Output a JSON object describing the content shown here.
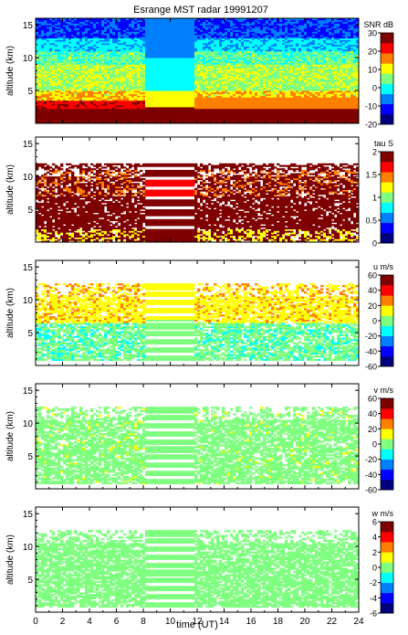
{
  "title": "Esrange MST radar 19991207",
  "x_axis": {
    "label": "time (UT)",
    "ticks": [
      "0",
      "2",
      "4",
      "6",
      "8",
      "10",
      "12",
      "14",
      "16",
      "18",
      "20",
      "22",
      "24"
    ]
  },
  "colormap": [
    "#00007f",
    "#0000ff",
    "#007fff",
    "#00ffff",
    "#7fff7f",
    "#ffff00",
    "#ff7f00",
    "#ff0000",
    "#7f0000"
  ],
  "chart_data": [
    {
      "type": "heatmap",
      "panel_id": "snr",
      "ylabel": "altitude (km)",
      "xlim": [
        0,
        24
      ],
      "ylim": [
        0,
        16
      ],
      "yticks": [
        5,
        10,
        15
      ],
      "xticks": [
        0,
        2,
        4,
        6,
        8,
        10,
        12,
        14,
        16,
        18,
        20,
        22,
        24
      ],
      "colorbar": {
        "label": "SNR dB",
        "range": [
          -20,
          30
        ],
        "ticks": [
          "30",
          "20",
          "10",
          "0",
          "-10",
          "-20"
        ]
      },
      "data_gaps": []
    },
    {
      "type": "heatmap",
      "panel_id": "tau",
      "ylabel": "altitude (km)",
      "xlim": [
        0,
        24
      ],
      "ylim": [
        0,
        16
      ],
      "yticks": [
        5,
        10,
        15
      ],
      "xticks": [
        0,
        2,
        4,
        6,
        8,
        10,
        12,
        14,
        16,
        18,
        20,
        22,
        24
      ],
      "colorbar": {
        "label": "tau S",
        "range": [
          0,
          2
        ],
        "ticks": [
          "2",
          "1.5",
          "1",
          "0.5",
          "0"
        ]
      },
      "data_gaps": [
        [
          8.2,
          11.7
        ]
      ]
    },
    {
      "type": "heatmap",
      "panel_id": "u",
      "ylabel": "altitude (km)",
      "xlim": [
        0,
        24
      ],
      "ylim": [
        0,
        16
      ],
      "yticks": [
        5,
        10,
        15
      ],
      "xticks": [
        0,
        2,
        4,
        6,
        8,
        10,
        12,
        14,
        16,
        18,
        20,
        22,
        24
      ],
      "colorbar": {
        "label": "u m/s",
        "range": [
          -60,
          60
        ],
        "ticks": [
          "60",
          "40",
          "20",
          "0",
          "-20",
          "-40",
          "-60"
        ]
      },
      "data_gaps": [
        [
          8.2,
          11.7
        ]
      ]
    },
    {
      "type": "heatmap",
      "panel_id": "v",
      "ylabel": "altitude (km)",
      "xlim": [
        0,
        24
      ],
      "ylim": [
        0,
        16
      ],
      "yticks": [
        5,
        10,
        15
      ],
      "xticks": [
        0,
        2,
        4,
        6,
        8,
        10,
        12,
        14,
        16,
        18,
        20,
        22,
        24
      ],
      "colorbar": {
        "label": "v m/s",
        "range": [
          -60,
          60
        ],
        "ticks": [
          "60",
          "40",
          "20",
          "0",
          "-20",
          "-40",
          "-60"
        ]
      },
      "data_gaps": [
        [
          8.2,
          11.7
        ]
      ]
    },
    {
      "type": "heatmap",
      "panel_id": "w",
      "ylabel": "altitude (km)",
      "xlim": [
        0,
        24
      ],
      "ylim": [
        0,
        16
      ],
      "yticks": [
        5,
        10,
        15
      ],
      "xticks": [
        0,
        2,
        4,
        6,
        8,
        10,
        12,
        14,
        16,
        18,
        20,
        22,
        24
      ],
      "colorbar": {
        "label": "w m/s",
        "range": [
          -6,
          6
        ],
        "ticks": [
          "6",
          "4",
          "2",
          "0",
          "-2",
          "-4",
          "-6"
        ]
      },
      "data_gaps": [
        [
          8.2,
          11.7
        ]
      ]
    }
  ]
}
